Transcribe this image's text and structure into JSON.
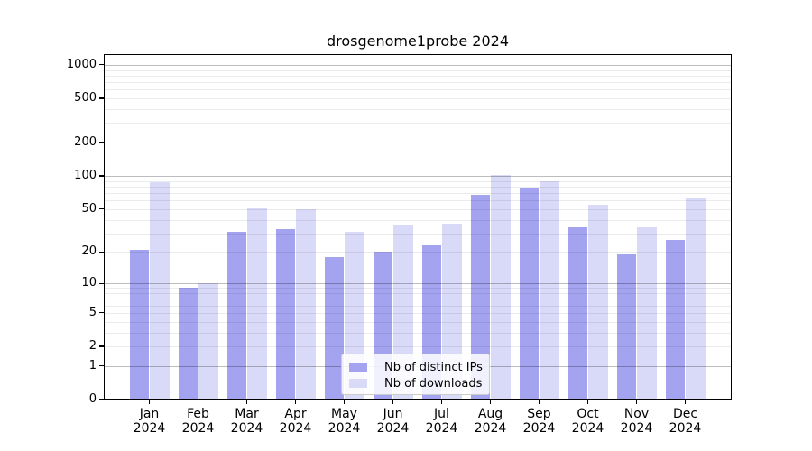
{
  "title": "drosgenome1probe 2024",
  "chart_data": {
    "type": "bar",
    "title": "drosgenome1probe 2024",
    "categories": [
      "Jan",
      "Feb",
      "Mar",
      "Apr",
      "May",
      "Jun",
      "Jul",
      "Aug",
      "Sep",
      "Oct",
      "Nov",
      "Dec"
    ],
    "year_label": "2024",
    "series": [
      {
        "name": "Nb of distinct IPs",
        "color": "#a3a3ef",
        "values": [
          21,
          9,
          31,
          33,
          18,
          20,
          23,
          67,
          79,
          34,
          19,
          26
        ]
      },
      {
        "name": "Nb of downloads",
        "color": "#d9d9f8",
        "values": [
          87,
          10,
          51,
          50,
          31,
          36,
          37,
          102,
          90,
          55,
          34,
          64
        ]
      }
    ],
    "yaxis": {
      "scale": "log1p",
      "tick_values": [
        0,
        1,
        2,
        5,
        10,
        20,
        50,
        100,
        200,
        500,
        1000
      ],
      "major_grid_values": [
        1,
        10,
        100,
        1000
      ],
      "range": [
        0,
        1250
      ]
    },
    "xlabel": "",
    "ylabel": "",
    "grid": true,
    "legend": {
      "position": "bottom-center"
    }
  }
}
